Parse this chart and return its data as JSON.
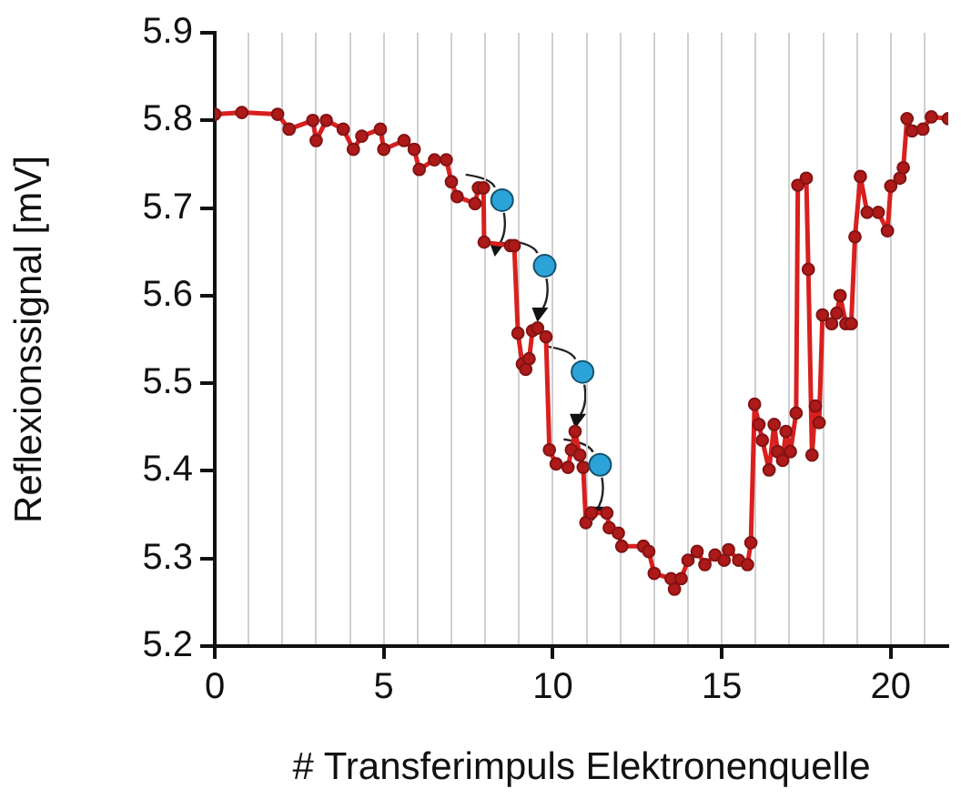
{
  "chart_data": {
    "type": "line",
    "xlabel": "# Transferimpuls Elektronenquelle",
    "ylabel": "Reflexionssignal [mV]",
    "xlim": [
      0,
      21.7
    ],
    "ylim": [
      5.2,
      5.9
    ],
    "xticks": [
      0,
      {
        "value": 1,
        "label": null
      },
      {
        "value": 2,
        "label": null
      },
      {
        "value": 3,
        "label": null
      },
      {
        "value": 4,
        "label": null
      },
      5,
      {
        "value": 6,
        "label": null
      },
      {
        "value": 7,
        "label": null
      },
      {
        "value": 8,
        "label": null
      },
      {
        "value": 9,
        "label": null
      },
      10,
      {
        "value": 11,
        "label": null
      },
      {
        "value": 12,
        "label": null
      },
      {
        "value": 13,
        "label": null
      },
      {
        "value": 14,
        "label": null
      },
      15,
      {
        "value": 16,
        "label": null
      },
      {
        "value": 17,
        "label": null
      },
      {
        "value": 18,
        "label": null
      },
      {
        "value": 19,
        "label": null
      },
      20,
      {
        "value": 21,
        "label": null
      }
    ],
    "yticks": [
      5.2,
      5.3,
      5.4,
      5.5,
      5.6,
      5.7,
      5.8,
      5.9
    ],
    "grid": "x",
    "legend": false,
    "marker": "circle",
    "line_style": "solid",
    "series": [
      {
        "color": "#d8201f",
        "x": [
          0,
          0.8,
          1.86,
          2.2,
          2.9,
          3.0,
          3.3,
          3.8,
          4.1,
          4.35,
          4.9,
          5.0,
          5.6,
          5.9,
          6.05,
          6.5,
          6.85,
          7.0,
          7.17,
          7.7,
          7.8,
          7.95,
          7.97,
          8.75,
          8.86,
          8.97,
          9.1,
          9.2,
          9.3,
          9.4,
          9.55,
          9.8,
          9.9,
          10.1,
          10.45,
          10.55,
          10.66,
          10.8,
          10.9,
          10.98,
          11.14,
          11.6,
          11.67,
          11.94,
          12.04,
          12.68,
          12.84,
          13.0,
          13.5,
          13.6,
          13.8,
          14.0,
          14.27,
          14.5,
          14.8,
          15.07,
          15.2,
          15.5,
          15.76,
          15.86,
          15.97,
          16.1,
          16.2,
          16.4,
          16.55,
          16.65,
          16.8,
          16.9,
          17.03,
          17.2,
          17.25,
          17.5,
          17.56,
          17.67,
          17.77,
          17.88,
          17.98,
          18.25,
          18.4,
          18.5,
          18.67,
          18.83,
          18.94,
          19.1,
          19.3,
          19.63,
          19.9,
          20.0,
          20.27,
          20.37,
          20.48,
          20.63,
          20.95,
          21.2,
          21.7
        ],
        "values": [
          5.807,
          5.809,
          5.807,
          5.79,
          5.8,
          5.777,
          5.8,
          5.79,
          5.767,
          5.782,
          5.79,
          5.767,
          5.777,
          5.767,
          5.744,
          5.755,
          5.755,
          5.73,
          5.713,
          5.705,
          5.723,
          5.723,
          5.661,
          5.657,
          5.657,
          5.557,
          5.522,
          5.516,
          5.528,
          5.56,
          5.563,
          5.553,
          5.424,
          5.408,
          5.404,
          5.424,
          5.445,
          5.418,
          5.404,
          5.341,
          5.352,
          5.352,
          5.335,
          5.329,
          5.314,
          5.314,
          5.308,
          5.283,
          5.277,
          5.265,
          5.277,
          5.298,
          5.308,
          5.293,
          5.304,
          5.298,
          5.31,
          5.298,
          5.293,
          5.318,
          5.476,
          5.453,
          5.435,
          5.401,
          5.453,
          5.422,
          5.412,
          5.445,
          5.422,
          5.466,
          5.726,
          5.734,
          5.63,
          5.418,
          5.474,
          5.455,
          5.578,
          5.568,
          5.58,
          5.6,
          5.568,
          5.568,
          5.667,
          5.736,
          5.695,
          5.695,
          5.674,
          5.725,
          5.734,
          5.746,
          5.802,
          5.788,
          5.79,
          5.804,
          5.802
        ]
      },
      {
        "type": "scatter",
        "color": "#2ba3d9",
        "x": [
          8.5,
          9.76,
          10.88,
          11.4
        ],
        "values": [
          5.709,
          5.634,
          5.513,
          5.407
        ]
      }
    ]
  }
}
